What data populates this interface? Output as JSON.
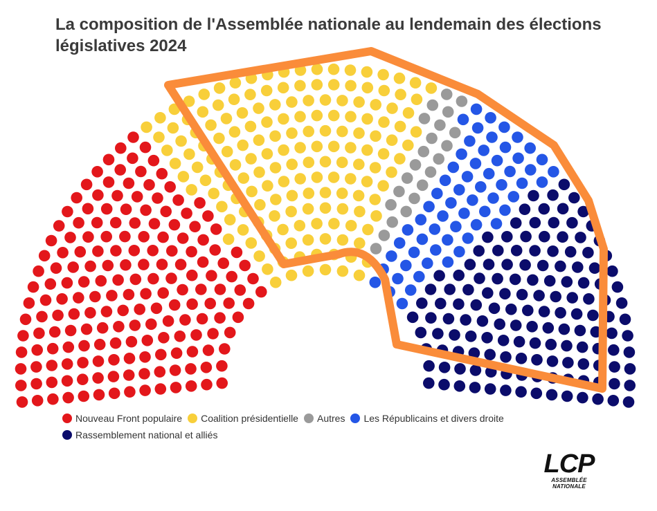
{
  "chart_data": {
    "type": "parliament",
    "title": "La composition de l'Assemblée nationale au lendemain des élections législatives 2024",
    "total_seats": 577,
    "series": [
      {
        "name": "Nouveau Front populaire",
        "seats": 182,
        "color": "#e3171b"
      },
      {
        "name": "Coalition présidentielle",
        "seats": 168,
        "color": "#f8cf3a"
      },
      {
        "name": "Autres",
        "seats": 22,
        "color": "#9a9a9a"
      },
      {
        "name": "Les Républicains et divers droite",
        "seats": 62,
        "color": "#2456e6"
      },
      {
        "name": "Rassemblement national et alliés",
        "seats": 143,
        "color": "#0b0c6b"
      }
    ],
    "annotation": {
      "type": "highlight-outline",
      "color": "#fa8c3a",
      "covers": [
        "Coalition présidentielle",
        "Autres",
        "Les Républicains et divers droite",
        "Rassemblement national et alliés"
      ]
    }
  },
  "legend_rows": [
    [
      0,
      1,
      2,
      3
    ],
    [
      4
    ]
  ],
  "logo": {
    "mark": "LCP",
    "subtitle": "ASSEMBLÉE NATIONALE"
  }
}
